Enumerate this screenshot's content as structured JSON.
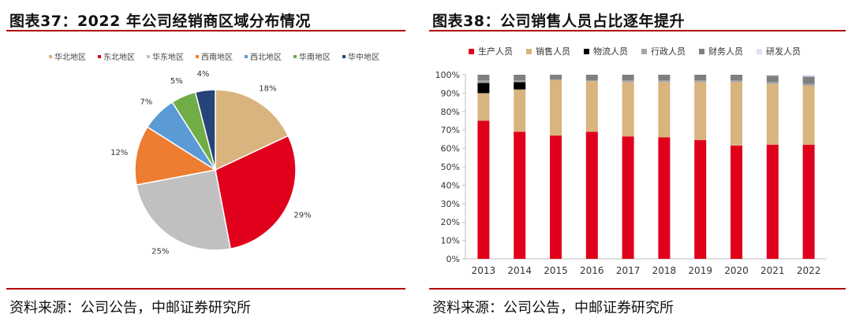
{
  "left": {
    "title": "图表37：2022 年公司经销商区域分布情况",
    "source": "资料来源：公司公告，中邮证券研究所"
  },
  "right": {
    "title": "图表38：公司销售人员占比逐年提升",
    "source": "资料来源：公司公告，中邮证券研究所"
  },
  "chart_data": [
    {
      "type": "pie",
      "title": "",
      "labels": [
        "华北地区",
        "东北地区",
        "华东地区",
        "西南地区",
        "西北地区",
        "华南地区",
        "华中地区"
      ],
      "values": [
        18,
        29,
        25,
        12,
        7,
        5,
        4
      ],
      "value_labels": [
        "18%",
        "29%",
        "25%",
        "12%",
        "7%",
        "5%",
        "4%"
      ],
      "colors": [
        "#d9b47e",
        "#e0001b",
        "#c0c0c0",
        "#ed7d31",
        "#5b9bd5",
        "#70ad47",
        "#264478"
      ],
      "legend_position": "top"
    },
    {
      "type": "bar",
      "stacked": true,
      "percent": true,
      "categories": [
        "2013",
        "2014",
        "2015",
        "2016",
        "2017",
        "2018",
        "2019",
        "2020",
        "2021",
        "2022"
      ],
      "series": [
        {
          "name": "生产人员",
          "color": "#e0001b",
          "values": [
            75,
            69,
            67,
            69,
            66.5,
            66,
            64.5,
            61.5,
            62,
            62
          ]
        },
        {
          "name": "销售人员",
          "color": "#d9b47e",
          "values": [
            15,
            23,
            30,
            27.5,
            29.5,
            30,
            31.5,
            34.5,
            33,
            32
          ]
        },
        {
          "name": "物流人员",
          "color": "#000000",
          "values": [
            5.5,
            4,
            0,
            0,
            0,
            0,
            0,
            0,
            0,
            0
          ]
        },
        {
          "name": "行政人员",
          "color": "#a6a6a6",
          "values": [
            1.5,
            1,
            0.5,
            0.5,
            1,
            1,
            1,
            1,
            1,
            1
          ]
        },
        {
          "name": "财务人员",
          "color": "#7f7f7f",
          "values": [
            3,
            3,
            2.5,
            3,
            3,
            3,
            3,
            3,
            3.5,
            4
          ]
        },
        {
          "name": "研发人员",
          "color": "#dde2f2",
          "values": [
            0,
            0,
            0,
            0,
            0,
            0,
            0,
            0,
            0.5,
            1
          ]
        }
      ],
      "yticks": [
        "0%",
        "10%",
        "20%",
        "30%",
        "40%",
        "50%",
        "60%",
        "70%",
        "80%",
        "90%",
        "100%"
      ],
      "ylim": [
        0,
        100
      ],
      "xlabel": "",
      "ylabel": "",
      "legend_position": "top"
    }
  ]
}
